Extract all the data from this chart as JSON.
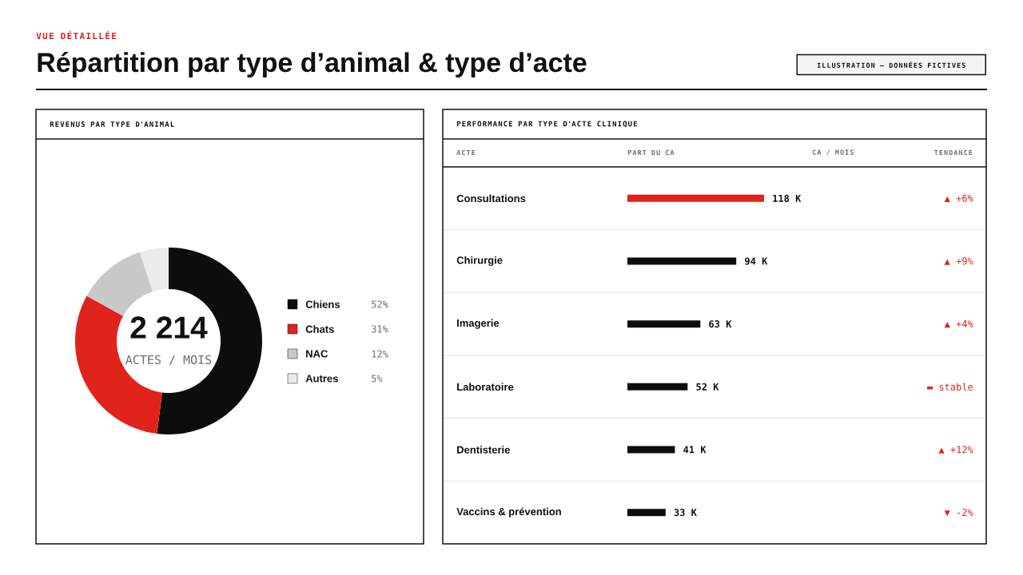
{
  "chart_data": [
    {
      "type": "other",
      "subtitle": "VUE DÉTAILLÉE",
      "title": "Répartition par type d’animal & type d’acte",
      "annotations": [
        "ILLUSTRATION — DONNÉES FICTIVES"
      ]
    },
    {
      "type": "donut",
      "title": "REVENUS PAR TYPE D'ANIMAL",
      "categories": [
        "Chiens",
        "Chats",
        "NAC",
        "Autres"
      ],
      "values": [
        52,
        31,
        12,
        5
      ],
      "colors": [
        "#0d0d0d",
        "#e0231b",
        "#c8c8c8",
        "#ebebeb"
      ],
      "value_labels": [
        "52%",
        "31%",
        "12%",
        "5%"
      ],
      "legend": "right",
      "annotations": [
        "2 214",
        "ACTES / MOIS"
      ]
    },
    {
      "type": "bar",
      "orientation": "horizontal",
      "title": "PERFORMANCE PAR TYPE D'ACTE CLINIQUE",
      "ylabel": "ACTE",
      "xlabel": "PART DU CA",
      "categories": [
        "Consultations",
        "Chirurgie",
        "Imagerie",
        "Laboratoire",
        "Dentisterie",
        "Vaccins & prévention"
      ],
      "values": [
        118,
        94,
        63,
        52,
        41,
        33
      ],
      "colors": [
        "#e0231b",
        "#0d0d0d",
        "#0d0d0d",
        "#0d0d0d",
        "#0d0d0d",
        "#0d0d0d"
      ],
      "value_labels": [
        "118 K",
        "94 K",
        "63 K",
        "52 K",
        "41 K",
        "33 K"
      ],
      "annotations": [
        "CA / MOIS",
        "TENDANCE",
        "▲ +6%",
        "▲ +9%",
        "▲ +4%",
        "▬ stable",
        "▲ +12%",
        "▼ -2%"
      ]
    }
  ]
}
